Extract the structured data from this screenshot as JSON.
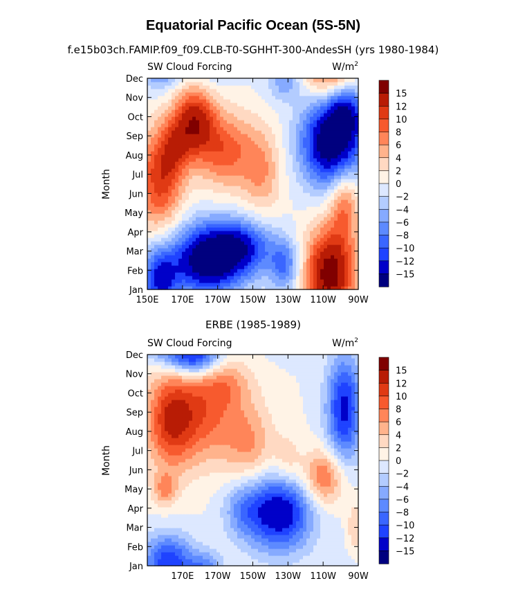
{
  "figure": {
    "title": "Equatorial Pacific Ocean (5S-5N)",
    "colors": [
      "#00007f",
      "#0000c9",
      "#1f43ff",
      "#3a66ff",
      "#5d8aff",
      "#86aaff",
      "#b3ccff",
      "#dde8ff",
      "#fff3e6",
      "#ffd9c2",
      "#ffb38c",
      "#ff8559",
      "#f75a2e",
      "#e03a14",
      "#b81c05",
      "#800000"
    ]
  },
  "chart_data": [
    {
      "type": "heatmap",
      "title": "f.e15b03ch.FAMIP.f09_f09.CLB-T0-SGHHT-300-AndesSH (yrs 1980-1984)",
      "left_label": "SW Cloud Forcing",
      "right_label": "W/m",
      "right_label_sup": "2",
      "ylabel": "Month",
      "xlabel": "",
      "xlim": [
        150,
        270
      ],
      "x_ticks": [
        150,
        170,
        190,
        210,
        230,
        250,
        270
      ],
      "x_tick_labels": [
        "150E",
        "170E",
        "170W",
        "150W",
        "130W",
        "110W",
        "90W"
      ],
      "y_ticks": [
        "Jan",
        "Feb",
        "Mar",
        "Apr",
        "May",
        "Jun",
        "Jul",
        "Aug",
        "Sep",
        "Oct",
        "Nov",
        "Dec"
      ],
      "levels": [
        -15,
        -12,
        -10,
        -8,
        -6,
        -4,
        -2,
        0,
        2,
        4,
        6,
        8,
        10,
        12,
        15
      ],
      "colorbar_labels": [
        "15",
        "12",
        "10",
        "8",
        "6",
        "4",
        "2",
        "0",
        "−2",
        "−4",
        "−6",
        "−8",
        "−10",
        "−12",
        "−15"
      ],
      "blobs": [
        {
          "lon": 157,
          "month": 1.5,
          "slon": 7,
          "smon": 1.2,
          "amp": -12
        },
        {
          "lon": 183,
          "month": 2.5,
          "slon": 14,
          "smon": 1.3,
          "amp": -17
        },
        {
          "lon": 203,
          "month": 3.2,
          "slon": 13,
          "smon": 1.0,
          "amp": -12
        },
        {
          "lon": 228,
          "month": 2.3,
          "slon": 6,
          "smon": 0.9,
          "amp": -8
        },
        {
          "lon": 228,
          "month": 11.8,
          "slon": 7,
          "smon": 0.7,
          "amp": -5
        },
        {
          "lon": 255,
          "month": 8.7,
          "slon": 12,
          "smon": 1.6,
          "amp": -19
        },
        {
          "lon": 263,
          "month": 10.3,
          "slon": 7,
          "smon": 1.0,
          "amp": -9
        },
        {
          "lon": 254,
          "month": 1.8,
          "slon": 10,
          "smon": 1.7,
          "amp": 17
        },
        {
          "lon": 262,
          "month": 5.6,
          "slon": 6,
          "smon": 1.4,
          "amp": 8
        },
        {
          "lon": 157,
          "month": 6.8,
          "slon": 9,
          "smon": 1.9,
          "amp": 11
        },
        {
          "lon": 177,
          "month": 9.8,
          "slon": 8,
          "smon": 1.3,
          "amp": 13
        },
        {
          "lon": 194,
          "month": 8.3,
          "slon": 11,
          "smon": 1.4,
          "amp": 9
        },
        {
          "lon": 215,
          "month": 7.2,
          "slon": 8,
          "smon": 1.6,
          "amp": 6
        },
        {
          "lon": 166,
          "month": 8.5,
          "slon": 6,
          "smon": 1.2,
          "amp": 6
        }
      ]
    },
    {
      "type": "heatmap",
      "title": "ERBE (1985-1989)",
      "left_label": "SW Cloud Forcing",
      "right_label": "W/m",
      "right_label_sup": "2",
      "ylabel": "Month",
      "xlabel": "",
      "xlim": [
        150,
        270
      ],
      "x_ticks": [
        170,
        190,
        210,
        230,
        250,
        270
      ],
      "x_tick_labels": [
        "170E",
        "170W",
        "150W",
        "130W",
        "110W",
        "90W"
      ],
      "y_ticks": [
        "Jan",
        "Feb",
        "Mar",
        "Apr",
        "May",
        "Jun",
        "Jul",
        "Aug",
        "Sep",
        "Oct",
        "Nov",
        "Dec"
      ],
      "levels": [
        -15,
        -12,
        -10,
        -8,
        -6,
        -4,
        -2,
        0,
        2,
        4,
        6,
        8,
        10,
        12,
        15
      ],
      "colorbar_labels": [
        "15",
        "12",
        "10",
        "8",
        "6",
        "4",
        "2",
        "0",
        "−2",
        "−4",
        "−6",
        "−8",
        "−10",
        "−12",
        "−15"
      ],
      "blobs": [
        {
          "lon": 162,
          "month": 1.2,
          "slon": 10,
          "smon": 1.0,
          "amp": -12
        },
        {
          "lon": 183,
          "month": 1.0,
          "slon": 7,
          "smon": 0.6,
          "amp": -6
        },
        {
          "lon": 225,
          "month": 3.8,
          "slon": 13,
          "smon": 1.4,
          "amp": -15
        },
        {
          "lon": 204,
          "month": 4.0,
          "slon": 8,
          "smon": 1.1,
          "amp": -5
        },
        {
          "lon": 177,
          "month": 11.8,
          "slon": 10,
          "smon": 0.6,
          "amp": -12
        },
        {
          "lon": 262,
          "month": 9.2,
          "slon": 7,
          "smon": 1.9,
          "amp": -13
        },
        {
          "lon": 268,
          "month": 3.0,
          "slon": 3,
          "smon": 1.0,
          "amp": 4
        },
        {
          "lon": 163,
          "month": 8.6,
          "slon": 10,
          "smon": 1.8,
          "amp": 11
        },
        {
          "lon": 183,
          "month": 9.0,
          "slon": 13,
          "smon": 1.8,
          "amp": 8
        },
        {
          "lon": 208,
          "month": 7.3,
          "slon": 10,
          "smon": 1.6,
          "amp": 6
        },
        {
          "lon": 250,
          "month": 5.6,
          "slon": 8,
          "smon": 1.0,
          "amp": 9
        },
        {
          "lon": 230,
          "month": 6.3,
          "slon": 6,
          "smon": 1.0,
          "amp": 4
        },
        {
          "lon": 160,
          "month": 5.0,
          "slon": 5,
          "smon": 0.6,
          "amp": 6
        },
        {
          "lon": 196,
          "month": 10.5,
          "slon": 10,
          "smon": 0.9,
          "amp": 4
        }
      ]
    }
  ]
}
